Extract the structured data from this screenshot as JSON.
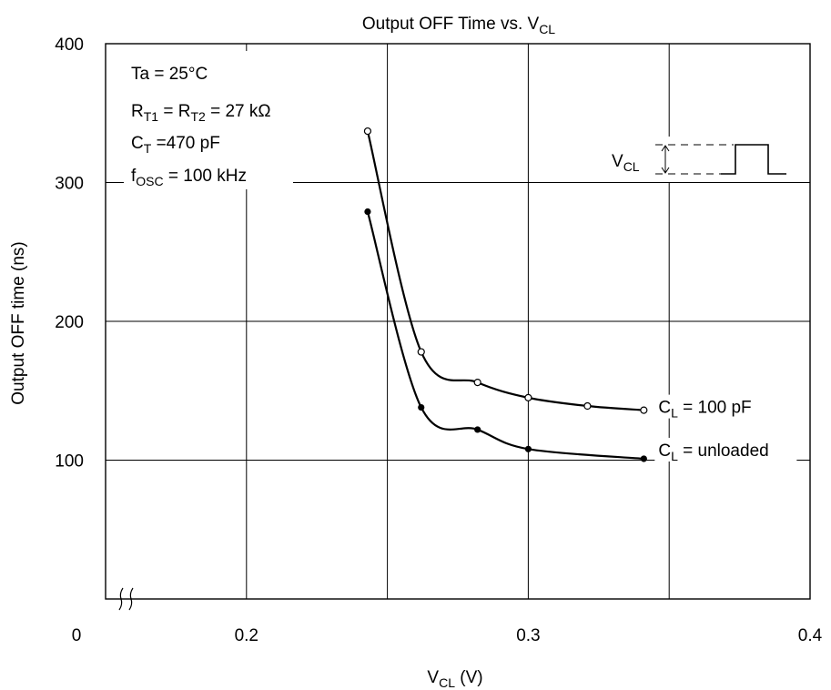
{
  "chart_data": {
    "type": "line",
    "title": "Output OFF Time vs. V",
    "title_sub": "CL",
    "xlabel": "V",
    "xlabel_sub": "CL",
    "xlabel_unit": " (V)",
    "ylabel": "Output OFF time (ns)",
    "xlim": [
      0.15,
      0.4
    ],
    "ylim": [
      0,
      400
    ],
    "x_origin_label": "0",
    "x_ticks": [
      {
        "value": 0.2,
        "label": "0.2"
      },
      {
        "value": 0.3,
        "label": "0.3"
      },
      {
        "value": 0.4,
        "label": "0.4"
      }
    ],
    "x_gridlines": [
      0.2,
      0.25,
      0.3,
      0.35
    ],
    "y_ticks": [
      {
        "value": 100,
        "label": "100"
      },
      {
        "value": 200,
        "label": "200"
      },
      {
        "value": 300,
        "label": "300"
      },
      {
        "value": 400,
        "label": "400"
      }
    ],
    "grid": true,
    "axis_break": "x",
    "series": [
      {
        "name": "C",
        "name_sub": "L",
        "name_rest": " = 100 pF",
        "marker": "open-circle",
        "x": [
          0.243,
          0.262,
          0.282,
          0.3,
          0.321,
          0.341
        ],
        "y": [
          337,
          178,
          156,
          145,
          139,
          136
        ]
      },
      {
        "name": "C",
        "name_sub": "L",
        "name_rest": " = unloaded",
        "marker": "filled-circle",
        "x": [
          0.243,
          0.262,
          0.282,
          0.3,
          0.341
        ],
        "y": [
          279,
          138,
          122,
          108,
          101
        ]
      }
    ],
    "annotations": {
      "conditions": [
        {
          "main": "Ta = 25°C",
          "sub": "",
          "rest": ""
        },
        {
          "main": "R",
          "sub": "T1",
          "rest": " = R",
          "sub2": "T2",
          "rest2": " = 27 kΩ"
        },
        {
          "main": "C",
          "sub": "T",
          "rest": " =470 pF"
        },
        {
          "main": "f",
          "sub": "OSC",
          "rest": " = 100 kHz"
        }
      ],
      "pulse_label_main": "V",
      "pulse_label_sub": "CL"
    }
  }
}
